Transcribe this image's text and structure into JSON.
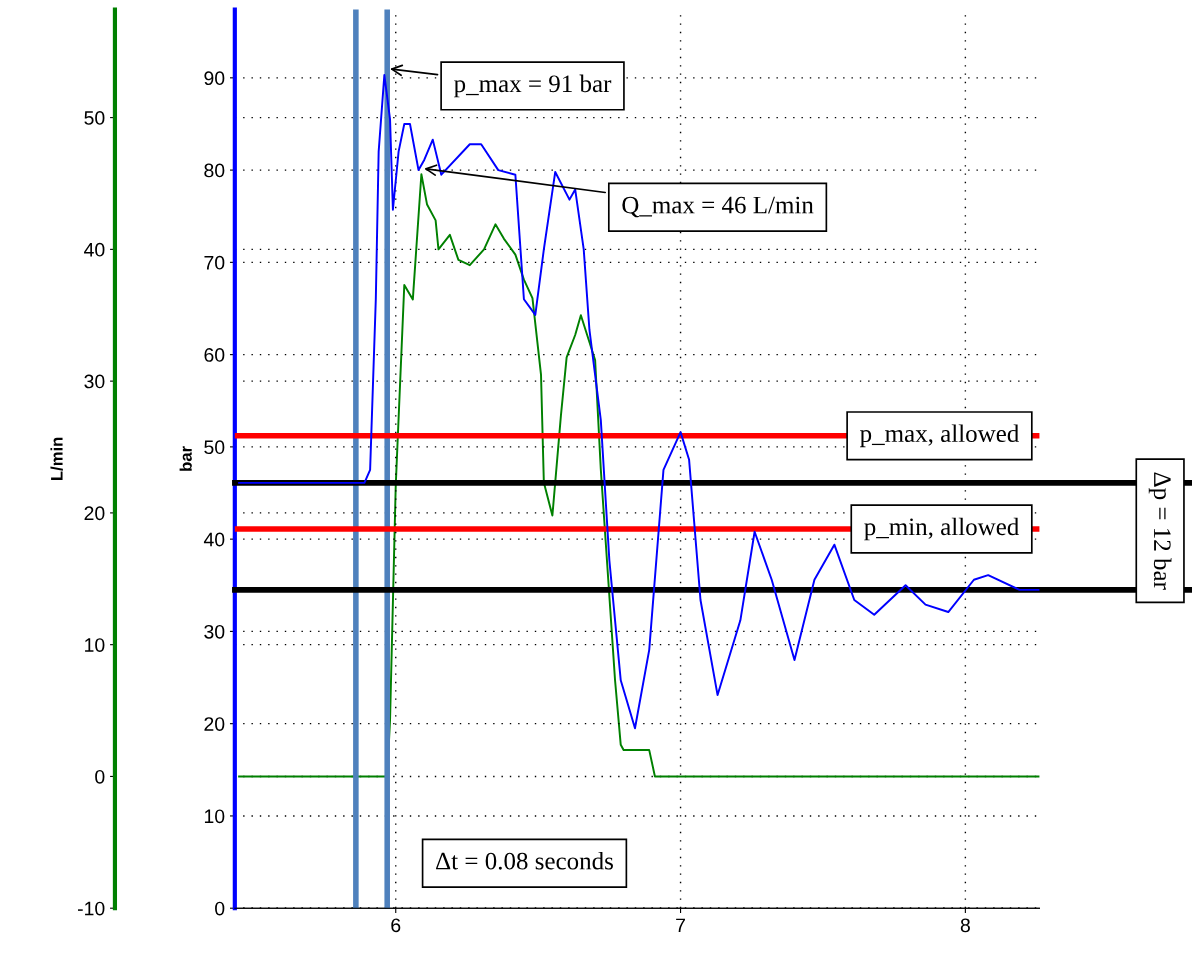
{
  "chart_data": {
    "type": "line",
    "ylabel": "bar",
    "y2label": "L/min",
    "xlim": [
      5.435,
      8.26
    ],
    "xticks": [
      6,
      7,
      8
    ],
    "ylim": [
      0,
      97.4
    ],
    "yticks": [
      0,
      10,
      20,
      30,
      40,
      50,
      60,
      70,
      80,
      90
    ],
    "y2lim": [
      -10,
      58.2
    ],
    "y2ticks": [
      -10,
      0,
      10,
      20,
      30,
      40,
      50
    ],
    "grid": true,
    "legend": false,
    "marker": "none",
    "line_style": "solid",
    "series": [
      {
        "color": "#0000ff",
        "axis": "y",
        "x": [
          5.45,
          5.89,
          5.91,
          5.93,
          5.94,
          5.96,
          5.98,
          5.99,
          6.01,
          6.03,
          6.05,
          6.08,
          6.1,
          6.13,
          6.16,
          6.26,
          6.3,
          6.36,
          6.42,
          6.45,
          6.49,
          6.52,
          6.56,
          6.61,
          6.63,
          6.66,
          6.68,
          6.72,
          6.75,
          6.79,
          6.84,
          6.89,
          6.94,
          7.0,
          7.03,
          7.07,
          7.13,
          7.21,
          7.26,
          7.32,
          7.4,
          7.47,
          7.54,
          7.61,
          7.68,
          7.79,
          7.86,
          7.94,
          8.03,
          8.08,
          8.19,
          8.26
        ],
        "values": [
          46.1,
          46.1,
          47.5,
          66,
          82,
          90.3,
          85.5,
          75.7,
          82,
          85,
          85,
          80,
          81.1,
          83.3,
          79.5,
          82.8,
          82.8,
          80,
          79.5,
          66,
          64.3,
          71.4,
          79.8,
          76.8,
          77.9,
          71.4,
          62.7,
          52.9,
          37.7,
          24.7,
          19.5,
          28,
          47.5,
          51.6,
          48.6,
          33.4,
          23.1,
          31.2,
          40.8,
          35.6,
          26.9,
          35.6,
          39.4,
          33.4,
          31.8,
          35,
          32.9,
          32.1,
          35.6,
          36.1,
          34.5,
          34.5
        ]
      },
      {
        "color": "#008000",
        "axis": "y2",
        "x": [
          5.45,
          5.97,
          5.98,
          6.0,
          6.03,
          6.06,
          6.09,
          6.11,
          6.14,
          6.15,
          6.19,
          6.22,
          6.26,
          6.31,
          6.35,
          6.38,
          6.42,
          6.45,
          6.48,
          6.51,
          6.52,
          6.55,
          6.58,
          6.6,
          6.63,
          6.65,
          6.7,
          6.72,
          6.77,
          6.79,
          6.8,
          6.89,
          6.91,
          8.26
        ],
        "values": [
          0,
          0,
          4.3,
          22.1,
          37.3,
          36.2,
          45.7,
          43.4,
          42.2,
          40,
          41.1,
          39.2,
          38.8,
          40,
          41.9,
          40.8,
          39.6,
          37.7,
          36.3,
          30.5,
          22.3,
          19.8,
          27.4,
          31.8,
          33.5,
          35,
          31.6,
          23.3,
          7.3,
          2.4,
          2,
          2,
          0,
          0
        ]
      }
    ],
    "ref_lines": [
      {
        "axis": "y",
        "value": 51.2,
        "label": "p_max, allowed",
        "color": "#ff0000"
      },
      {
        "axis": "y",
        "value": 46.1,
        "label": null,
        "color": "#000000"
      },
      {
        "axis": "y",
        "value": 41.1,
        "label": "p_min, allowed",
        "color": "#ff0000"
      },
      {
        "axis": "y",
        "value": 34.5,
        "label": null,
        "color": "#000000"
      },
      {
        "axis": "x",
        "value": 5.86,
        "label": null,
        "color": "#4f81bd"
      },
      {
        "axis": "x",
        "value": 5.97,
        "label": null,
        "color": "#4f81bd"
      }
    ],
    "annotations": [
      {
        "text": "p_max = 91 bar",
        "x": 5.97,
        "y": 91
      },
      {
        "text": "Q_max = 46 L/min",
        "x": 6.09,
        "y": 80.2
      },
      "Δp = 12 bar",
      "Δt = 0.08 seconds"
    ]
  }
}
